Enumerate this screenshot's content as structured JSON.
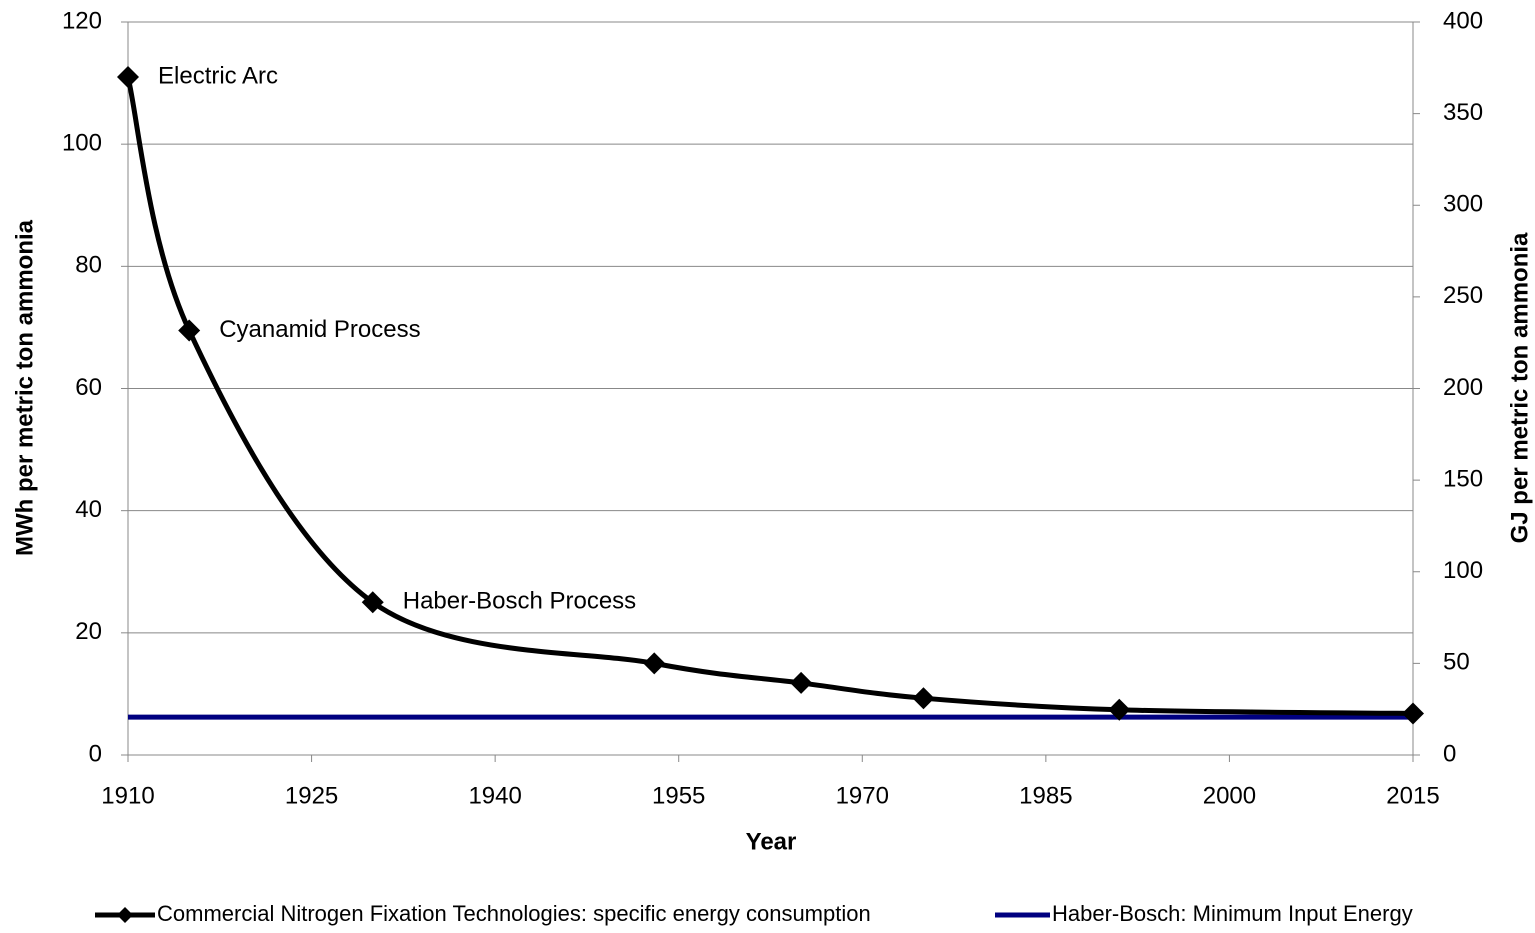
{
  "chart_data": {
    "type": "line",
    "x_label": "Year",
    "y_label": "MWh per metric ton ammonia",
    "y2_label": "GJ per metric ton ammonia",
    "xlim": [
      1910,
      2015
    ],
    "xticks": [
      1910,
      1925,
      1940,
      1955,
      1970,
      1985,
      2000,
      2015
    ],
    "ylim": [
      0,
      120
    ],
    "yticks": [
      0,
      20,
      40,
      60,
      80,
      100,
      120
    ],
    "y2lim": [
      0,
      400
    ],
    "y2ticks": [
      0,
      50,
      100,
      150,
      200,
      250,
      300,
      350,
      400
    ],
    "grid": true,
    "legend": "bottom",
    "annotations": [
      "Electric Arc",
      "Cyanamid Process",
      "Haber-Bosch Process"
    ],
    "series": [
      {
        "name": "Commercial Nitrogen Fixation Technologies: specific energy consumption",
        "color": "#000000",
        "smooth": true,
        "marker": "diamond",
        "x": [
          1910,
          1915,
          1930,
          1953,
          1965,
          1975,
          1991,
          2015
        ],
        "values": [
          111,
          69.5,
          25,
          15,
          11.8,
          9.3,
          7.4,
          6.8
        ]
      },
      {
        "name": "Haber-Bosch: Minimum Input Energy",
        "color": "#000080",
        "x": [
          1910,
          2015
        ],
        "values": [
          6.2,
          6.2
        ]
      }
    ]
  }
}
